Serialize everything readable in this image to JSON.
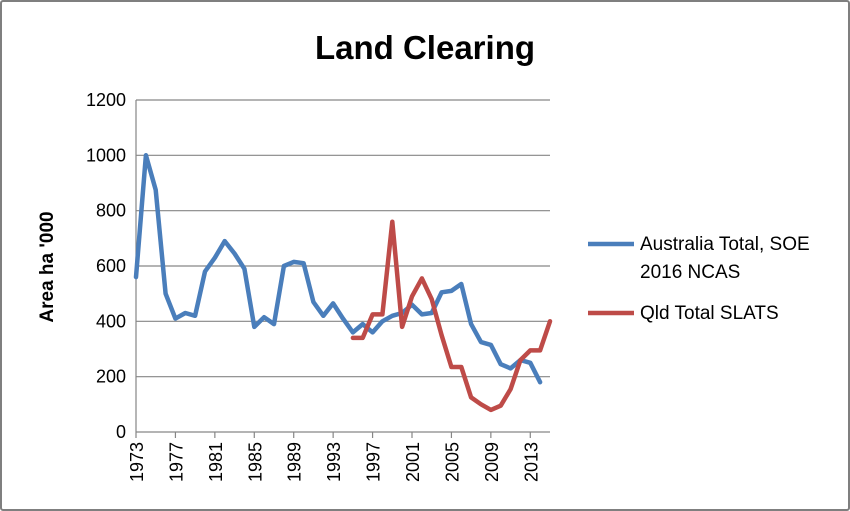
{
  "chart_data": {
    "type": "line",
    "title": "Land Clearing",
    "xlabel": "",
    "ylabel": "Area ha '000",
    "xlim": [
      1973,
      2015
    ],
    "ylim": [
      0,
      1200
    ],
    "y_ticks": [
      0,
      200,
      400,
      600,
      800,
      1000,
      1200
    ],
    "y_tick_labels": [
      "0",
      "200",
      "400",
      "600",
      "800",
      "1000",
      "1200"
    ],
    "x_ticks": [
      1973,
      1977,
      1981,
      1985,
      1989,
      1993,
      1997,
      2001,
      2005,
      2009,
      2013
    ],
    "x_tick_labels": [
      "1973",
      "1977",
      "1981",
      "1985",
      "1989",
      "1993",
      "1997",
      "2001",
      "2005",
      "2009",
      "2013"
    ],
    "grid": "horizontal",
    "legend_position": "right",
    "series": [
      {
        "name": "Australia Total, SOE 2016 NCAS",
        "color": "#4a7ebb",
        "x": [
          1973,
          1974,
          1975,
          1976,
          1977,
          1978,
          1979,
          1980,
          1981,
          1982,
          1983,
          1984,
          1985,
          1986,
          1987,
          1988,
          1989,
          1990,
          1991,
          1992,
          1993,
          1994,
          1995,
          1996,
          1997,
          1998,
          1999,
          2000,
          2001,
          2002,
          2003,
          2004,
          2005,
          2006,
          2007,
          2008,
          2009,
          2010,
          2011,
          2012,
          2013,
          2014
        ],
        "values": [
          560,
          1000,
          875,
          500,
          410,
          430,
          420,
          580,
          630,
          690,
          645,
          590,
          380,
          415,
          390,
          600,
          615,
          610,
          470,
          420,
          465,
          410,
          360,
          390,
          360,
          400,
          420,
          430,
          460,
          425,
          430,
          505,
          510,
          535,
          390,
          325,
          315,
          245,
          230,
          260,
          250,
          180
        ]
      },
      {
        "name": "Qld Total SLATS",
        "color": "#be4b48",
        "x": [
          1995,
          1996,
          1997,
          1998,
          1999,
          2000,
          2001,
          2002,
          2003,
          2004,
          2005,
          2006,
          2007,
          2008,
          2009,
          2010,
          2011,
          2012,
          2013,
          2014,
          2015
        ],
        "values": [
          340,
          340,
          425,
          425,
          760,
          380,
          490,
          555,
          480,
          350,
          235,
          235,
          125,
          100,
          80,
          95,
          155,
          260,
          295,
          295,
          400
        ]
      }
    ]
  }
}
